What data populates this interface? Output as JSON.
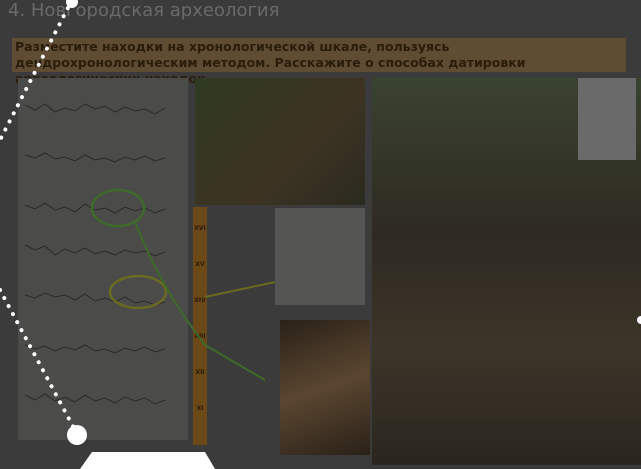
{
  "header": {
    "title": "4. Новгородская археология"
  },
  "task": {
    "text": "Разместите находки на хронологической шкале, пользуясь дендрохронологическим методом. Расскажите о способах датировки археологических находок"
  },
  "scale": {
    "labels": [
      "XVI",
      "XV",
      "XIV",
      "XIII",
      "XII",
      "XI"
    ]
  }
}
